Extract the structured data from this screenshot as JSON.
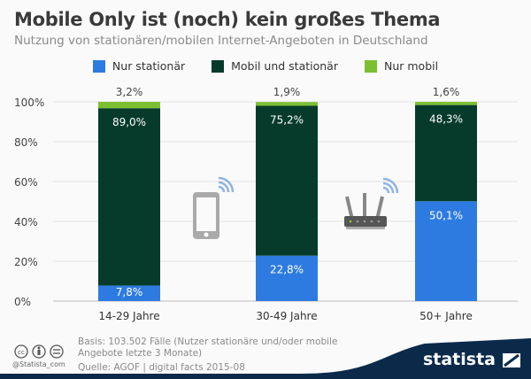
{
  "title": "Mobile Only ist (noch) kein großes Thema",
  "subtitle": "Nutzung von stationären/mobilen Internet-Angeboten in Deutschland",
  "chart_data": {
    "type": "bar",
    "stacked": true,
    "categories": [
      "14-29 Jahre",
      "30-49 Jahre",
      "50+ Jahre"
    ],
    "series": [
      {
        "name": "Nur stationär",
        "color": "#2d7be0",
        "values": [
          7.8,
          22.8,
          50.1
        ],
        "labels": [
          "7,8%",
          "22,8%",
          "50,1%"
        ]
      },
      {
        "name": "Mobil und stationär",
        "color": "#063b2c",
        "values": [
          89.0,
          75.2,
          48.3
        ],
        "labels": [
          "89,0%",
          "75,2%",
          "48,3%"
        ]
      },
      {
        "name": "Nur mobil",
        "color": "#7cc032",
        "values": [
          3.2,
          1.9,
          1.6
        ],
        "labels": [
          "3,2%",
          "1,9%",
          "1,6%"
        ]
      }
    ],
    "yticks": [
      "0%",
      "20%",
      "40%",
      "60%",
      "80%",
      "100%"
    ],
    "ylim": [
      0,
      100
    ],
    "grid": true,
    "legend": "top"
  },
  "icons": [
    "smartphone-wifi-icon",
    "router-wifi-icon"
  ],
  "footer": {
    "basis_line1": "Basis: 103.502 Fälle (Nutzer stationäre und/oder mobile",
    "basis_line2": "Angebote letzte 3 Monate)",
    "source": "Quelle: AGOF | digital facts 2015-08",
    "handle": "@Statista_com",
    "brand": "statista"
  }
}
